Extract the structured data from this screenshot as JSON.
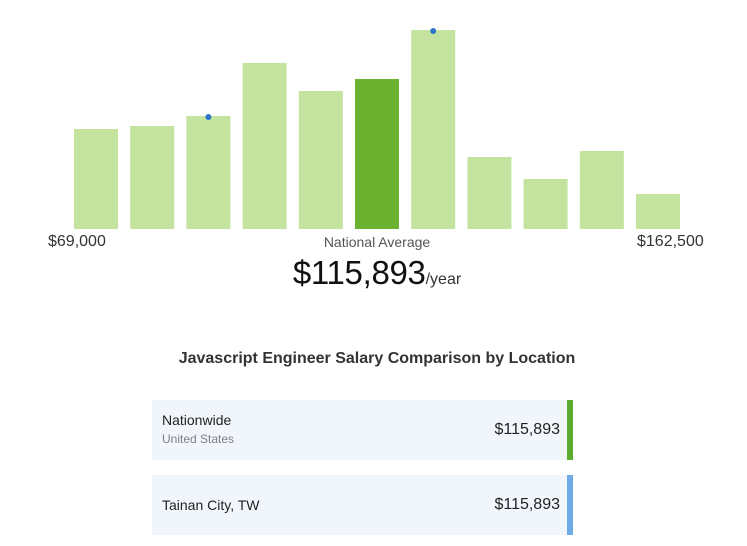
{
  "chart_data": {
    "type": "bar",
    "title": "",
    "xlabel": "",
    "ylabel": "",
    "values": [
      100,
      103,
      113,
      166,
      138,
      150,
      199,
      72,
      50,
      78,
      35
    ],
    "highlight_index": 5,
    "marker_indices": [
      2,
      6
    ],
    "ylim": [
      0,
      200
    ],
    "colors": {
      "bar": "#c3e39e",
      "highlight": "#6cb230",
      "marker": "#2f74c8"
    }
  },
  "axis": {
    "min_label": "$69,000",
    "max_label": "$162,500"
  },
  "average": {
    "caption": "National Average",
    "value": "$115,893",
    "unit": "/year"
  },
  "comparison": {
    "title": "Javascript Engineer Salary Comparison by Location",
    "locations": [
      {
        "name": "Nationwide",
        "sub": "United States",
        "salary": "$115,893",
        "bar_color": "#5cac30"
      },
      {
        "name": "Tainan City, TW",
        "sub": "",
        "salary": "$115,893",
        "bar_color": "#6ea9e8"
      }
    ]
  }
}
